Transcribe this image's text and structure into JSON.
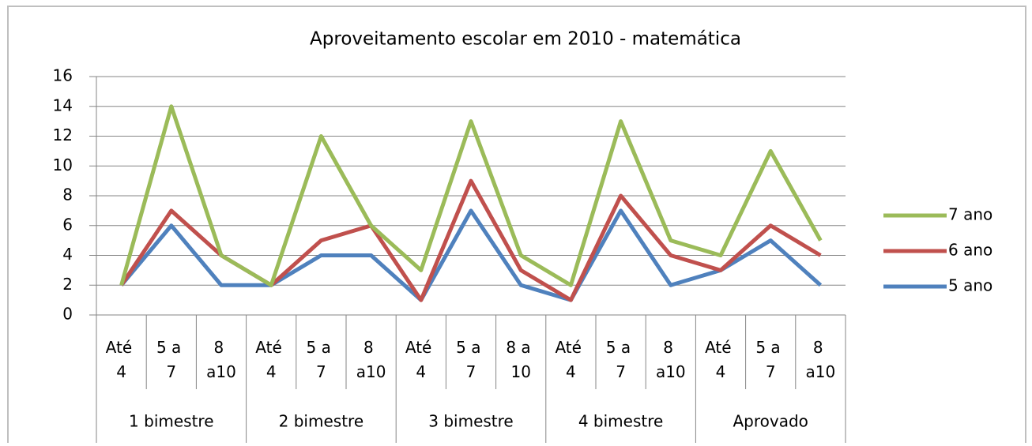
{
  "chart_data": {
    "type": "line",
    "title": "Aproveitamento escolar em 2010 - matemática",
    "categories": [
      "Até 4",
      "5 a 7",
      "8 a10",
      "Até 4",
      "5 a 7",
      "8 a10",
      "Até 4",
      "5 a 7",
      "8 a 10",
      "Até 4",
      "5 a 7",
      "8 a10",
      "Até 4",
      "5 a 7",
      "8 a10"
    ],
    "groups": [
      "1 bimestre",
      "2 bimestre",
      "3 bimestre",
      "4 bimestre",
      "Aprovado"
    ],
    "series": [
      {
        "name": "7 ano",
        "color": "#9bbb59",
        "values": [
          2,
          14,
          4,
          2,
          12,
          6,
          3,
          13,
          4,
          2,
          13,
          5,
          4,
          11,
          5
        ]
      },
      {
        "name": "6 ano",
        "color": "#c0504d",
        "values": [
          2,
          7,
          4,
          2,
          5,
          6,
          1,
          9,
          3,
          1,
          8,
          4,
          3,
          6,
          4
        ]
      },
      {
        "name": "5 ano",
        "color": "#4f81bd",
        "values": [
          2,
          6,
          2,
          2,
          4,
          4,
          1,
          7,
          2,
          1,
          7,
          2,
          3,
          5,
          2
        ]
      }
    ],
    "ylim": [
      0,
      16
    ],
    "yticks": [
      0,
      2,
      4,
      6,
      8,
      10,
      12,
      14,
      16
    ],
    "grid": true,
    "legend": "right"
  }
}
